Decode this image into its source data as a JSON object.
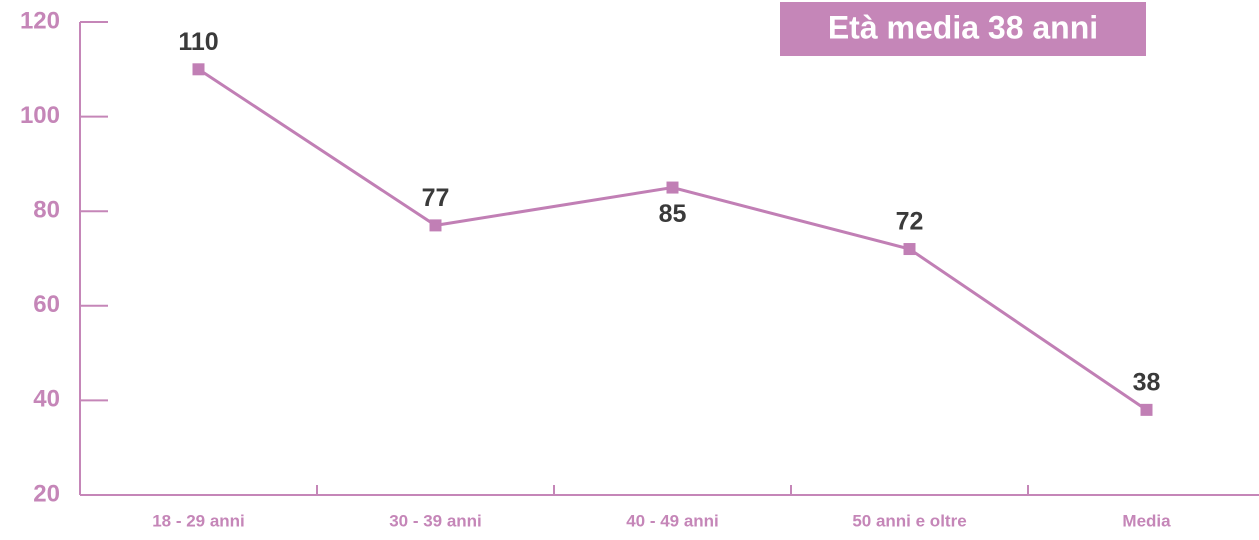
{
  "chart_data": {
    "type": "line",
    "annotation": "Età media 38 anni",
    "categories": [
      "18 - 29 anni",
      "30 - 39 anni",
      "40 - 49 anni",
      "50 anni e oltre",
      "Media"
    ],
    "series": [
      {
        "name": "Età",
        "color": "#c17fb5",
        "values": [
          110,
          77,
          85,
          72,
          38
        ]
      }
    ],
    "ylim": [
      20,
      120
    ],
    "yticks": [
      20,
      40,
      60,
      80,
      100,
      120
    ],
    "grid": false,
    "legend": false
  }
}
